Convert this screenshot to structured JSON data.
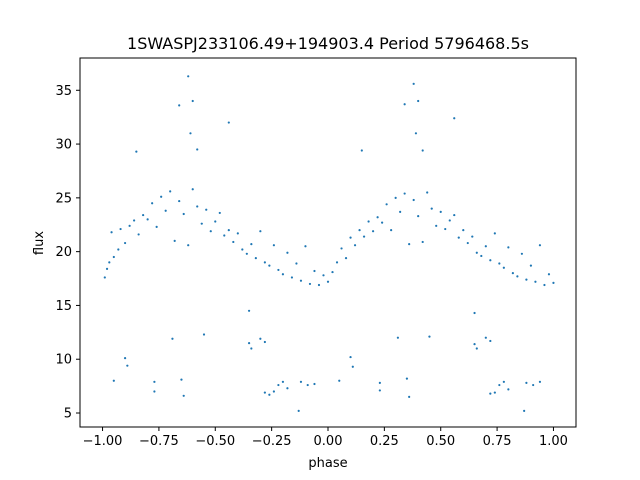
{
  "chart_data": {
    "type": "scatter",
    "title": "1SWASPJ233106.49+194903.4 Period 5796468.5s",
    "xlabel": "phase",
    "ylabel": "flux",
    "xlim": [
      -1.1,
      1.1
    ],
    "ylim": [
      3.7,
      38.0
    ],
    "xticks": [
      -1.0,
      -0.75,
      -0.5,
      -0.25,
      0.0,
      0.25,
      0.5,
      0.75,
      1.0
    ],
    "xtick_labels": [
      "−1.00",
      "−0.75",
      "−0.50",
      "−0.25",
      "0.00",
      "0.25",
      "0.50",
      "0.75",
      "1.00"
    ],
    "yticks": [
      5,
      10,
      15,
      20,
      25,
      30,
      35
    ],
    "ytick_labels": [
      "5",
      "10",
      "15",
      "20",
      "25",
      "30",
      "35"
    ],
    "grid": false,
    "marker_color": "#1f77b4",
    "series": [
      {
        "points": [
          [
            -0.99,
            17.6
          ],
          [
            -0.98,
            18.4
          ],
          [
            -0.97,
            19.0
          ],
          [
            -0.96,
            21.8
          ],
          [
            -0.95,
            19.5
          ],
          [
            -0.93,
            20.2
          ],
          [
            -0.92,
            22.1
          ],
          [
            -0.9,
            20.8
          ],
          [
            -0.88,
            22.4
          ],
          [
            -0.86,
            22.9
          ],
          [
            -0.84,
            21.6
          ],
          [
            -0.82,
            23.4
          ],
          [
            -0.8,
            23.0
          ],
          [
            -0.78,
            24.5
          ],
          [
            -0.76,
            22.3
          ],
          [
            -0.74,
            25.1
          ],
          [
            -0.72,
            23.8
          ],
          [
            -0.7,
            25.6
          ],
          [
            -0.68,
            21.0
          ],
          [
            -0.66,
            24.7
          ],
          [
            -0.64,
            23.5
          ],
          [
            -0.62,
            20.6
          ],
          [
            -0.6,
            25.8
          ],
          [
            -0.58,
            24.2
          ],
          [
            -0.56,
            22.6
          ],
          [
            -0.54,
            23.9
          ],
          [
            -0.52,
            21.9
          ],
          [
            -0.5,
            22.8
          ],
          [
            -0.48,
            23.6
          ],
          [
            -0.46,
            21.5
          ],
          [
            -0.44,
            22.0
          ],
          [
            -0.42,
            20.9
          ],
          [
            -0.4,
            21.7
          ],
          [
            -0.38,
            20.2
          ],
          [
            -0.36,
            19.8
          ],
          [
            -0.34,
            20.7
          ],
          [
            -0.32,
            19.4
          ],
          [
            -0.3,
            21.9
          ],
          [
            -0.28,
            19.0
          ],
          [
            -0.26,
            18.7
          ],
          [
            -0.24,
            20.6
          ],
          [
            -0.22,
            18.3
          ],
          [
            -0.2,
            17.9
          ],
          [
            -0.18,
            19.9
          ],
          [
            -0.16,
            17.6
          ],
          [
            -0.14,
            18.9
          ],
          [
            -0.12,
            17.3
          ],
          [
            -0.1,
            20.5
          ],
          [
            -0.08,
            17.0
          ],
          [
            -0.06,
            18.2
          ],
          [
            -0.04,
            16.9
          ],
          [
            -0.02,
            17.8
          ],
          [
            0.0,
            17.2
          ],
          [
            0.02,
            18.1
          ],
          [
            0.04,
            19.0
          ],
          [
            0.06,
            20.3
          ],
          [
            0.08,
            19.4
          ],
          [
            0.1,
            21.3
          ],
          [
            0.12,
            20.6
          ],
          [
            0.14,
            22.0
          ],
          [
            0.16,
            21.4
          ],
          [
            0.18,
            22.8
          ],
          [
            0.2,
            21.9
          ],
          [
            0.22,
            23.2
          ],
          [
            0.24,
            22.7
          ],
          [
            0.26,
            24.4
          ],
          [
            0.28,
            22.0
          ],
          [
            0.3,
            25.0
          ],
          [
            0.32,
            23.7
          ],
          [
            0.34,
            25.4
          ],
          [
            0.36,
            20.7
          ],
          [
            0.38,
            24.8
          ],
          [
            0.4,
            23.3
          ],
          [
            0.42,
            20.9
          ],
          [
            0.44,
            25.5
          ],
          [
            0.46,
            24.0
          ],
          [
            0.48,
            22.4
          ],
          [
            0.5,
            23.7
          ],
          [
            0.52,
            22.1
          ],
          [
            0.54,
            22.9
          ],
          [
            0.56,
            23.4
          ],
          [
            0.58,
            21.3
          ],
          [
            0.6,
            22.0
          ],
          [
            0.62,
            20.8
          ],
          [
            0.64,
            21.4
          ],
          [
            0.66,
            19.9
          ],
          [
            0.68,
            19.6
          ],
          [
            0.7,
            20.5
          ],
          [
            0.72,
            19.2
          ],
          [
            0.74,
            21.7
          ],
          [
            0.76,
            18.9
          ],
          [
            0.78,
            18.5
          ],
          [
            0.8,
            20.4
          ],
          [
            0.82,
            18.0
          ],
          [
            0.84,
            17.7
          ],
          [
            0.86,
            19.8
          ],
          [
            0.88,
            17.4
          ],
          [
            0.9,
            18.7
          ],
          [
            0.92,
            17.2
          ],
          [
            0.94,
            20.6
          ],
          [
            0.96,
            16.9
          ],
          [
            0.98,
            17.9
          ],
          [
            1.0,
            17.1
          ],
          [
            -0.62,
            36.3
          ],
          [
            -0.6,
            34.0
          ],
          [
            -0.61,
            31.0
          ],
          [
            -0.58,
            29.5
          ],
          [
            -0.66,
            33.6
          ],
          [
            0.38,
            35.6
          ],
          [
            0.4,
            34.0
          ],
          [
            0.39,
            31.0
          ],
          [
            0.42,
            29.4
          ],
          [
            0.34,
            33.7
          ],
          [
            -0.85,
            29.3
          ],
          [
            0.15,
            29.4
          ],
          [
            -0.44,
            32.0
          ],
          [
            0.56,
            32.4
          ],
          [
            -0.9,
            10.1
          ],
          [
            -0.89,
            9.4
          ],
          [
            -0.95,
            8.0
          ],
          [
            0.1,
            10.2
          ],
          [
            0.11,
            9.3
          ],
          [
            0.05,
            8.0
          ],
          [
            -0.77,
            7.9
          ],
          [
            -0.77,
            7.0
          ],
          [
            0.23,
            7.8
          ],
          [
            0.23,
            7.1
          ],
          [
            -0.65,
            8.1
          ],
          [
            -0.64,
            6.6
          ],
          [
            0.35,
            8.2
          ],
          [
            0.36,
            6.5
          ],
          [
            -0.35,
            14.5
          ],
          [
            -0.35,
            11.5
          ],
          [
            -0.34,
            11.0
          ],
          [
            0.65,
            14.3
          ],
          [
            0.65,
            11.4
          ],
          [
            0.66,
            11.0
          ],
          [
            -0.3,
            11.9
          ],
          [
            -0.28,
            11.6
          ],
          [
            0.7,
            12.0
          ],
          [
            0.72,
            11.7
          ],
          [
            -0.28,
            6.9
          ],
          [
            -0.26,
            6.7
          ],
          [
            -0.24,
            7.0
          ],
          [
            -0.22,
            7.6
          ],
          [
            -0.2,
            7.9
          ],
          [
            -0.18,
            7.3
          ],
          [
            0.72,
            6.8
          ],
          [
            0.74,
            6.9
          ],
          [
            0.76,
            7.6
          ],
          [
            0.78,
            7.9
          ],
          [
            0.8,
            7.2
          ],
          [
            -0.12,
            7.9
          ],
          [
            -0.09,
            7.6
          ],
          [
            -0.06,
            7.7
          ],
          [
            0.88,
            7.8
          ],
          [
            0.91,
            7.6
          ],
          [
            0.94,
            7.9
          ],
          [
            -0.13,
            5.2
          ],
          [
            0.87,
            5.2
          ],
          [
            -0.55,
            12.3
          ],
          [
            0.45,
            12.1
          ],
          [
            -0.69,
            11.9
          ],
          [
            0.31,
            12.0
          ]
        ]
      }
    ]
  }
}
